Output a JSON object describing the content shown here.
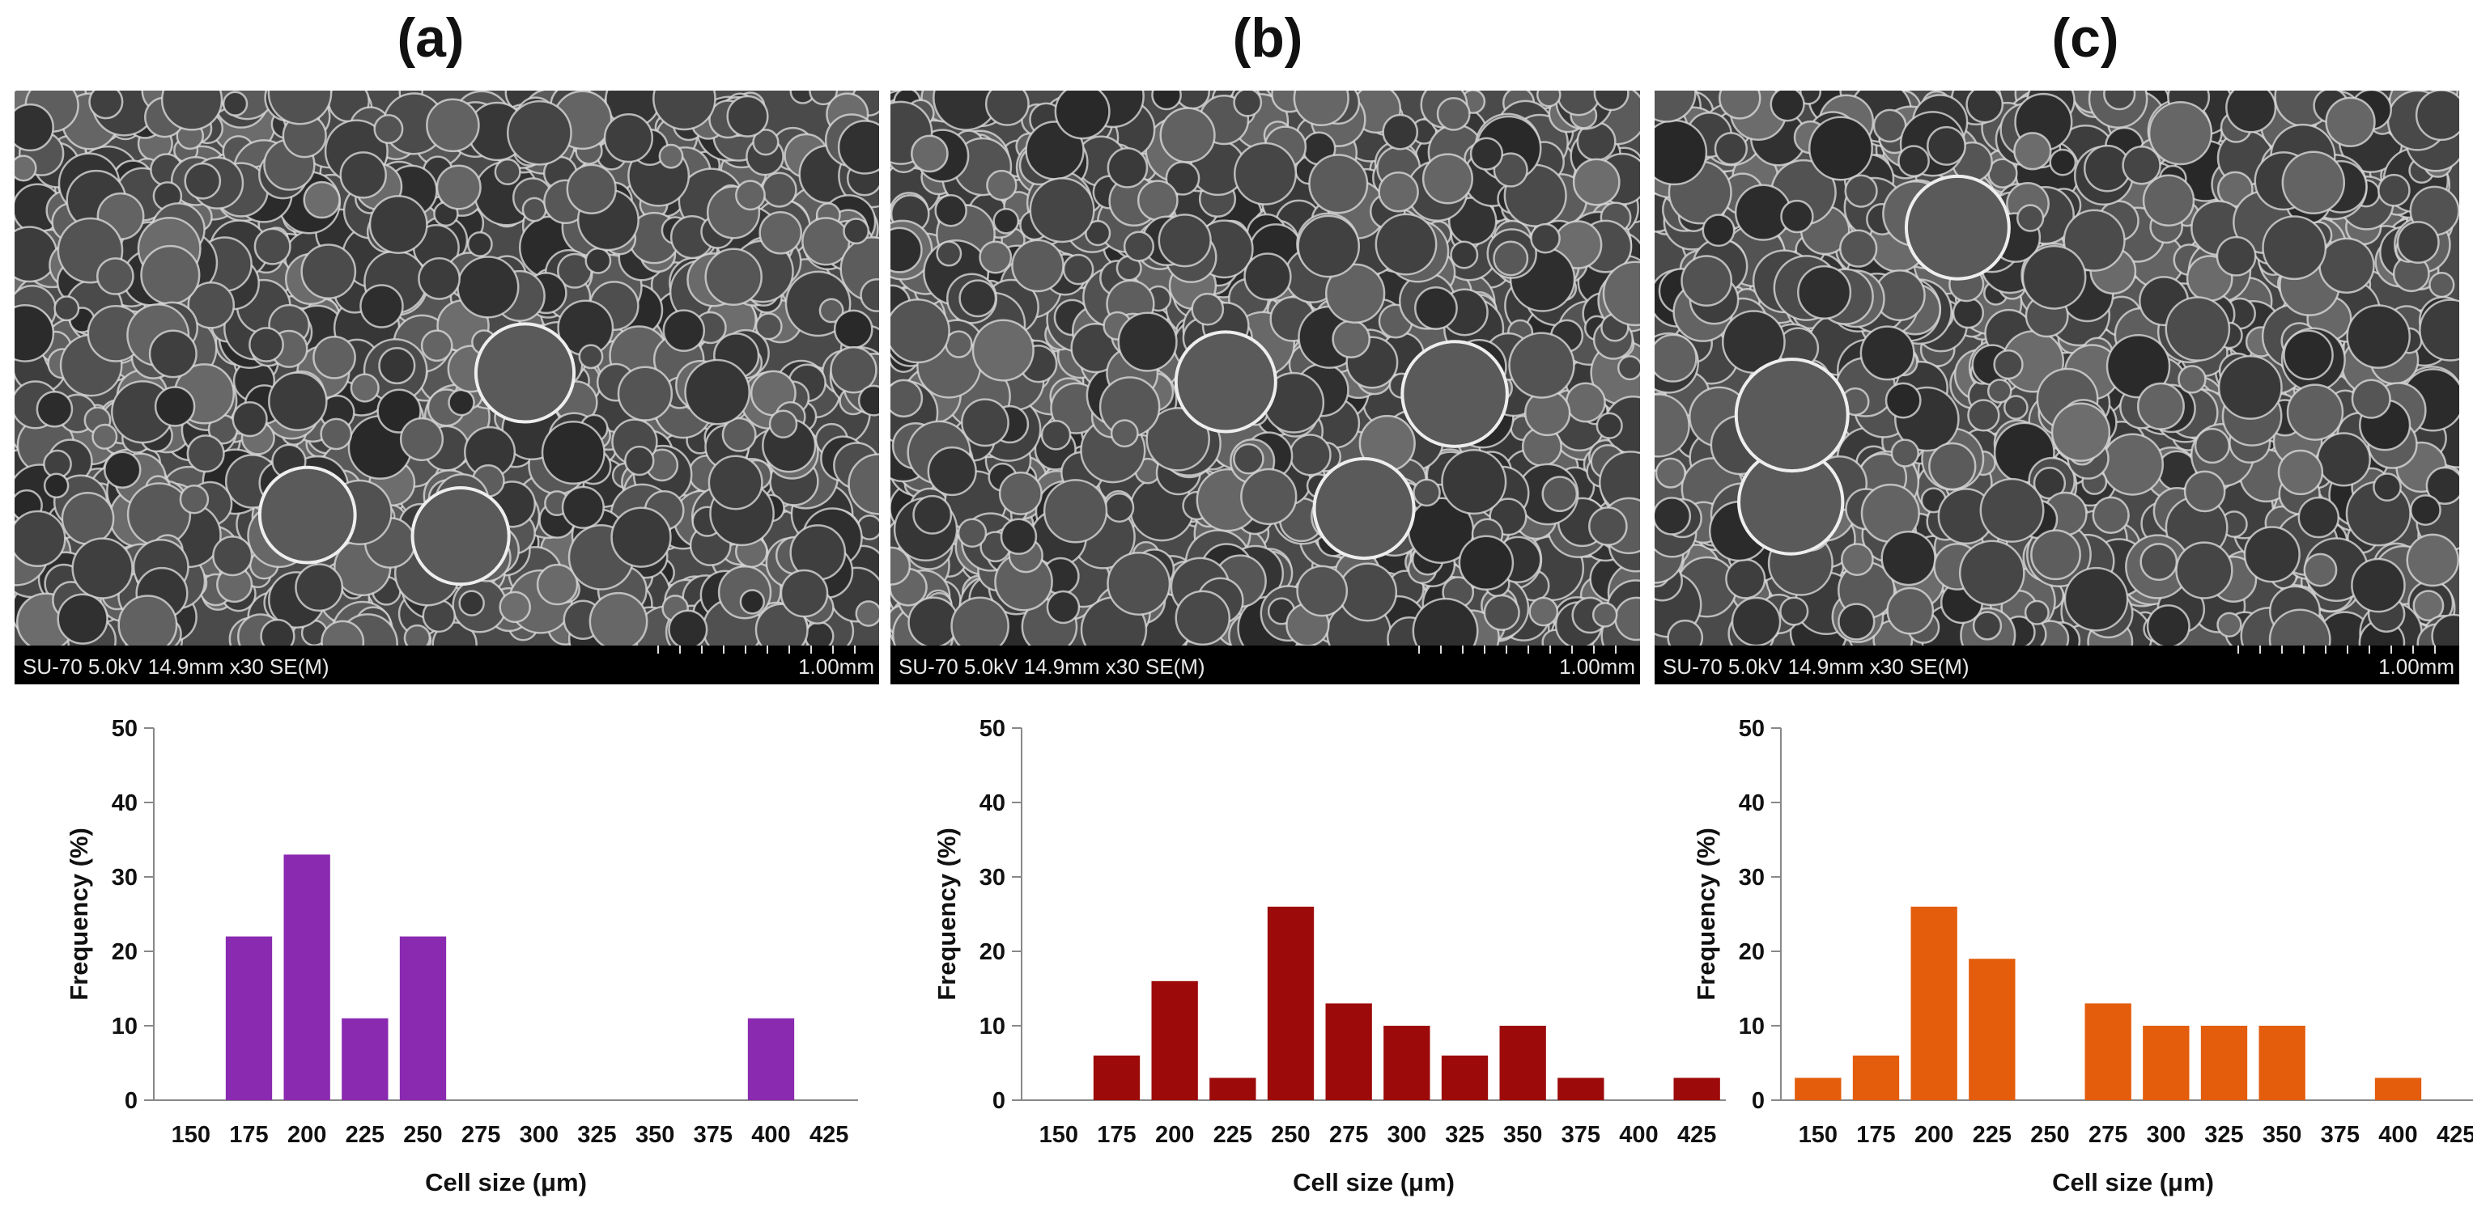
{
  "figure": {
    "panels": [
      {
        "label": "(a)",
        "sem_info": "SU-70 5.0kV 14.9mm x30 SE(M)",
        "scale_bar": "1.00mm"
      },
      {
        "label": "(b)",
        "sem_info": "SU-70 5.0kV 14.9mm x30 SE(M)",
        "scale_bar": "1.00mm"
      },
      {
        "label": "(c)",
        "sem_info": "SU-70 5.0kV 14.9mm x30 SE(M)",
        "scale_bar": "1.00mm"
      }
    ]
  },
  "chart_data": [
    {
      "type": "bar",
      "panel": "(a)",
      "categories": [
        "150",
        "175",
        "200",
        "225",
        "250",
        "275",
        "300",
        "325",
        "350",
        "375",
        "400",
        "425"
      ],
      "values": [
        0,
        22,
        33,
        11,
        22,
        0,
        0,
        0,
        0,
        0,
        11,
        0
      ],
      "color": "#8a2ab0",
      "xlabel": "Cell size (μm)",
      "ylabel": "Frequency (%)",
      "ylim": [
        0,
        50
      ],
      "yticks": [
        0,
        10,
        20,
        30,
        40,
        50
      ]
    },
    {
      "type": "bar",
      "panel": "(b)",
      "categories": [
        "150",
        "175",
        "200",
        "225",
        "250",
        "275",
        "300",
        "325",
        "350",
        "375",
        "400",
        "425"
      ],
      "values": [
        0,
        6,
        16,
        3,
        26,
        13,
        10,
        6,
        10,
        3,
        0,
        3
      ],
      "color": "#9c0a0a",
      "xlabel": "Cell size (μm)",
      "ylabel": "Frequency (%)",
      "ylim": [
        0,
        50
      ],
      "yticks": [
        0,
        10,
        20,
        30,
        40,
        50
      ]
    },
    {
      "type": "bar",
      "panel": "(c)",
      "categories": [
        "150",
        "175",
        "200",
        "225",
        "250",
        "275",
        "300",
        "325",
        "350",
        "375",
        "400",
        "425"
      ],
      "values": [
        3,
        6,
        26,
        19,
        0,
        13,
        10,
        10,
        10,
        0,
        3,
        0
      ],
      "color": "#e35d0c",
      "xlabel": "Cell size (μm)",
      "ylabel": "Frequency (%)",
      "ylim": [
        0,
        50
      ],
      "yticks": [
        0,
        10,
        20,
        30,
        40,
        50
      ]
    }
  ]
}
